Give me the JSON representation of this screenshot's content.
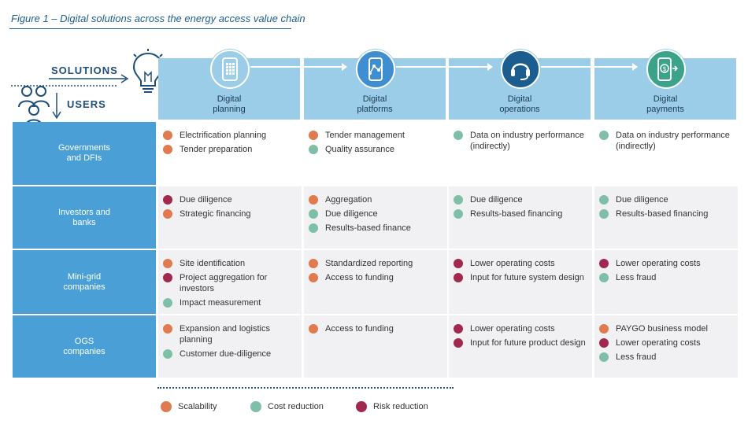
{
  "title": "Figure 1 – Digital solutions across the energy access value chain",
  "corner": {
    "solutions_label": "SOLUTIONS",
    "users_label": "USERS"
  },
  "legend": [
    {
      "label": "Scalability",
      "color": "#e07a4f",
      "key": "S"
    },
    {
      "label": "Cost reduction",
      "color": "#7fbfa8",
      "key": "C"
    },
    {
      "label": "Risk reduction",
      "color": "#a1284f",
      "key": "R"
    }
  ],
  "columns": [
    {
      "line1": "Digital",
      "line2": "planning",
      "icon": "tablet-grid-icon",
      "circle_color": "#9ccde8"
    },
    {
      "line1": "Digital",
      "line2": "platforms",
      "icon": "phone-network-icon",
      "circle_color": "#3f8fd0"
    },
    {
      "line1": "Digital",
      "line2": "operations",
      "icon": "headset-icon",
      "circle_color": "#1c5d8f"
    },
    {
      "line1": "Digital",
      "line2": "payments",
      "icon": "phone-payment-icon",
      "circle_color": "#3aa38a"
    }
  ],
  "rows": [
    {
      "line1": "Governments",
      "line2": "and DFIs",
      "cells": [
        [
          {
            "text": "Electrification planning",
            "key": "S"
          },
          {
            "text": "Tender preparation",
            "key": "S"
          }
        ],
        [
          {
            "text": "Tender management",
            "key": "S"
          },
          {
            "text": "Quality assurance",
            "key": "C"
          }
        ],
        [
          {
            "text": "Data on industry performance (indirectly)",
            "key": "C"
          }
        ],
        [
          {
            "text": "Data on industry performance (indirectly)",
            "key": "C"
          }
        ]
      ]
    },
    {
      "line1": "Investors and",
      "line2": "banks",
      "cells": [
        [
          {
            "text": "Due diligence",
            "key": "R"
          },
          {
            "text": "Strategic financing",
            "key": "S"
          }
        ],
        [
          {
            "text": "Aggregation",
            "key": "S"
          },
          {
            "text": "Due diligence",
            "key": "C"
          },
          {
            "text": "Results-based finance",
            "key": "C"
          }
        ],
        [
          {
            "text": "Due diligence",
            "key": "C"
          },
          {
            "text": "Results-based financing",
            "key": "C"
          }
        ],
        [
          {
            "text": "Due diligence",
            "key": "C"
          },
          {
            "text": "Results-based financing",
            "key": "C"
          }
        ]
      ]
    },
    {
      "line1": "Mini-grid",
      "line2": "companies",
      "cells": [
        [
          {
            "text": "Site identification",
            "key": "S"
          },
          {
            "text": "Project aggregation for investors",
            "key": "R"
          },
          {
            "text": "Impact measurement",
            "key": "C"
          }
        ],
        [
          {
            "text": "Standardized reporting",
            "key": "S"
          },
          {
            "text": "Access to funding",
            "key": "S"
          }
        ],
        [
          {
            "text": "Lower operating costs",
            "key": "R"
          },
          {
            "text": "Input for future system design",
            "key": "R"
          }
        ],
        [
          {
            "text": "Lower operating costs",
            "key": "R"
          },
          {
            "text": "Less fraud",
            "key": "C"
          }
        ]
      ]
    },
    {
      "line1": "OGS",
      "line2": "companies",
      "cells": [
        [
          {
            "text": "Expansion and logistics planning",
            "key": "S"
          },
          {
            "text": "Customer due-diligence",
            "key": "C"
          }
        ],
        [
          {
            "text": "Access to funding",
            "key": "S"
          }
        ],
        [
          {
            "text": "Lower operating costs",
            "key": "R"
          },
          {
            "text": "Input for future product design",
            "key": "R"
          }
        ],
        [
          {
            "text": "PAYGO business model",
            "key": "S"
          },
          {
            "text": "Lower operating costs",
            "key": "R"
          },
          {
            "text": "Less fraud",
            "key": "C"
          }
        ]
      ]
    }
  ]
}
